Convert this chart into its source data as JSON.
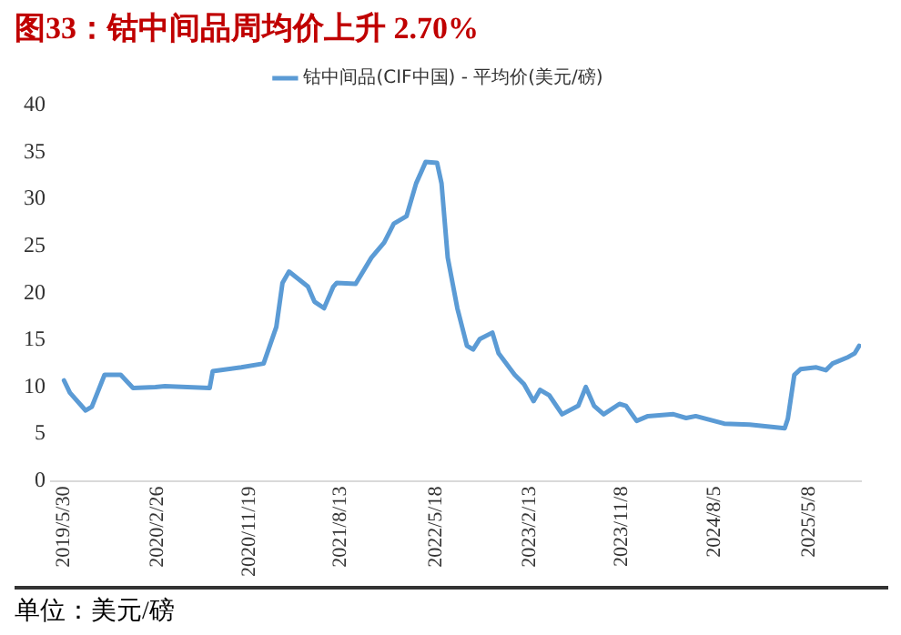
{
  "chart_data": {
    "type": "line",
    "title": "图33：钴中间品周均价上升 2.70%",
    "annotations": [
      "单位：美元/磅"
    ],
    "legend": "top",
    "grid": false,
    "marker": "none",
    "line_style": "solid",
    "xlim": [
      "2019-04-22",
      "2025-10-05"
    ],
    "xticks": [
      {
        "value": "2019-05-30",
        "label": "2019/5/30"
      },
      {
        "value": "2020-02-26",
        "label": "2020/2/26"
      },
      {
        "value": "2020-11-19",
        "label": "2020/11/19"
      },
      {
        "value": "2021-08-13",
        "label": "2021/8/13"
      },
      {
        "value": "2022-05-18",
        "label": "2022/5/18"
      },
      {
        "value": "2023-02-13",
        "label": "2023/2/13"
      },
      {
        "value": "2023-11-08",
        "label": "2023/11/8"
      },
      {
        "value": "2024-08-05",
        "label": "2024/8/5"
      },
      {
        "value": "2025-05-08",
        "label": "2025/5/8"
      }
    ],
    "ylim": [
      0,
      40
    ],
    "yticks": [
      0,
      5,
      10,
      15,
      20,
      25,
      30,
      35,
      40
    ],
    "series": [
      {
        "name": "钴中间品(CIF中国) - 平均价(美元/磅)",
        "color": "#5b9bd5",
        "x": [
          "2019-05-30",
          "2019-06-16",
          "2019-08-01",
          "2019-08-19",
          "2019-09-25",
          "2019-11-11",
          "2019-12-17",
          "2020-02-20",
          "2020-03-19",
          "2020-07-27",
          "2020-08-05",
          "2020-10-27",
          "2020-12-31",
          "2021-02-06",
          "2021-02-24",
          "2021-03-15",
          "2021-05-09",
          "2021-05-28",
          "2021-06-25",
          "2021-07-22",
          "2021-08-01",
          "2021-09-25",
          "2021-11-10",
          "2021-12-17",
          "2022-01-14",
          "2022-02-20",
          "2022-03-20",
          "2022-04-17",
          "2022-05-20",
          "2022-06-02",
          "2022-06-20",
          "2022-07-18",
          "2022-08-15",
          "2022-09-02",
          "2022-09-21",
          "2022-10-28",
          "2022-11-15",
          "2023-01-01",
          "2023-01-28",
          "2023-02-25",
          "2023-03-16",
          "2023-04-12",
          "2023-05-19",
          "2023-07-05",
          "2023-07-27",
          "2023-08-20",
          "2023-09-17",
          "2023-11-02",
          "2023-11-21",
          "2023-12-22",
          "2024-01-24",
          "2024-04-07",
          "2024-05-14",
          "2024-06-11",
          "2024-09-02",
          "2024-11-15",
          "2025-02-25",
          "2025-03-06",
          "2025-03-25",
          "2025-04-12",
          "2025-05-28",
          "2025-06-25",
          "2025-07-14",
          "2025-08-29",
          "2025-09-17",
          "2025-09-30"
        ],
        "values": [
          10.7,
          9.4,
          7.5,
          7.9,
          11.3,
          11.3,
          9.9,
          10,
          10.1,
          9.9,
          11.7,
          12.1,
          12.5,
          16.4,
          21.1,
          22.3,
          20.7,
          19.1,
          18.4,
          20.7,
          21.1,
          21,
          23.8,
          25.4,
          27.4,
          28.2,
          31.7,
          34,
          33.9,
          31.7,
          23.8,
          18.4,
          14.4,
          14,
          15.1,
          15.8,
          13.6,
          11.3,
          10.3,
          8.5,
          9.7,
          9.1,
          7.1,
          8,
          10,
          8,
          7.1,
          8.2,
          8,
          6.4,
          6.9,
          7.1,
          6.7,
          6.9,
          6.1,
          6,
          5.6,
          6.6,
          11.3,
          11.9,
          12.1,
          11.8,
          12.5,
          13.2,
          13.6,
          14.4
        ]
      }
    ]
  }
}
